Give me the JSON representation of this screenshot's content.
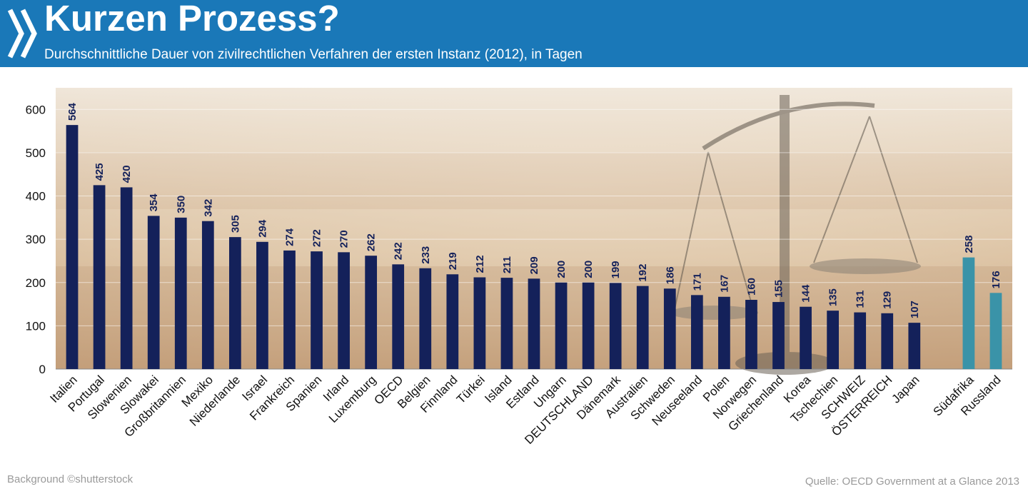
{
  "header": {
    "title": "Kurzen Prozess?",
    "subtitle": "Durchschnittliche Dauer von zivilrechtlichen Verfahren der ersten Instanz (2012), in Tagen",
    "chevron_icon": "double-chevron-right-icon"
  },
  "footer": {
    "credit": "Background  ©shutterstock",
    "source": "Quelle: OECD  Government at a Glance 2013"
  },
  "colors": {
    "header_bg": "#1a78b8",
    "bar_oecd": "#14215a",
    "bar_other": "#3a93a8"
  },
  "chart_data": {
    "type": "bar",
    "title": "Kurzen Prozess?",
    "subtitle": "Durchschnittliche Dauer von zivilrechtlichen Verfahren der ersten Instanz (2012), in Tagen",
    "xlabel": "",
    "ylabel": "",
    "ylim": [
      0,
      650
    ],
    "yticks": [
      0,
      100,
      200,
      300,
      400,
      500,
      600
    ],
    "grid": true,
    "background": "photo of courtroom with scales of justice",
    "categories": [
      "Italien",
      "Portugal",
      "Slowenien",
      "Slowakei",
      "Großbritannien",
      "Mexiko",
      "Niederlande",
      "Israel",
      "Frankreich",
      "Spanien",
      "Irland",
      "Luxemburg",
      "OECD",
      "Belgien",
      "Finnland",
      "Türkei",
      "Island",
      "Estland",
      "Ungarn",
      "DEUTSCHLAND",
      "Dänemark",
      "Australien",
      "Schweden",
      "Neuseeland",
      "Polen",
      "Norwegen",
      "Griechenland",
      "Korea",
      "Tschechien",
      "SCHWEIZ",
      "ÖSTERREICH",
      "Japan",
      "Südafrika",
      "Russland"
    ],
    "values": [
      564,
      425,
      420,
      354,
      350,
      342,
      305,
      294,
      274,
      272,
      270,
      262,
      242,
      233,
      219,
      212,
      211,
      209,
      200,
      200,
      199,
      192,
      186,
      171,
      167,
      160,
      155,
      144,
      135,
      131,
      129,
      107,
      258,
      176
    ],
    "group": [
      "oecd",
      "oecd",
      "oecd",
      "oecd",
      "oecd",
      "oecd",
      "oecd",
      "oecd",
      "oecd",
      "oecd",
      "oecd",
      "oecd",
      "oecd",
      "oecd",
      "oecd",
      "oecd",
      "oecd",
      "oecd",
      "oecd",
      "oecd",
      "oecd",
      "oecd",
      "oecd",
      "oecd",
      "oecd",
      "oecd",
      "oecd",
      "oecd",
      "oecd",
      "oecd",
      "oecd",
      "oecd",
      "other",
      "other"
    ]
  }
}
